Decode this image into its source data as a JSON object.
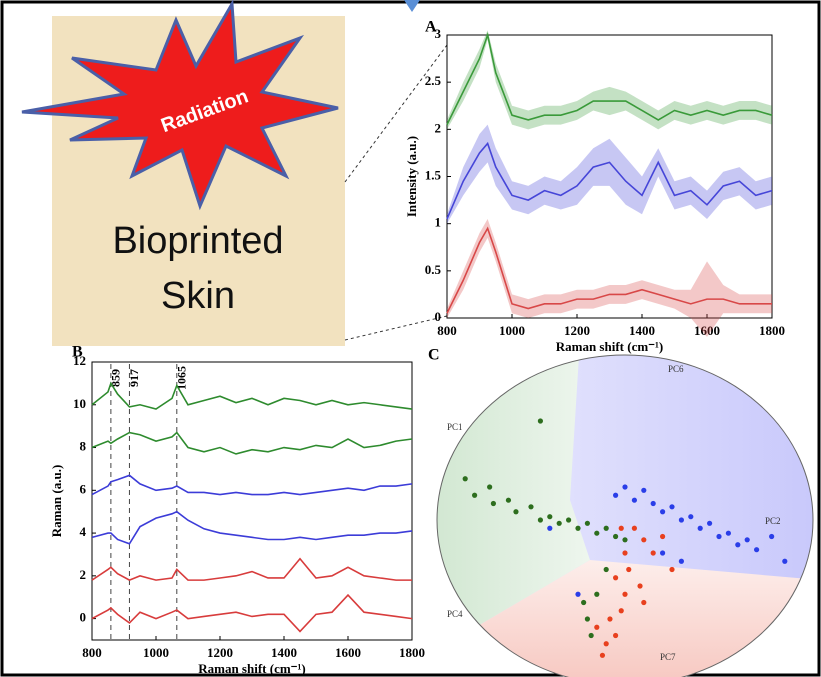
{
  "illustration": {
    "burst": "Radiation",
    "label_lines": [
      "Bioprinted",
      "Skin"
    ]
  },
  "chart_data": [
    {
      "type": "line",
      "panel": "A",
      "ylabel": "Intensity (a.u.)",
      "xlabel": "Raman shift (cm⁻¹)",
      "x": [
        800,
        850,
        900,
        925,
        950,
        1000,
        1050,
        1100,
        1150,
        1200,
        1250,
        1300,
        1350,
        1400,
        1450,
        1500,
        1550,
        1600,
        1650,
        1700,
        1750,
        1800
      ],
      "series": [
        {
          "color": "#3a9a3a",
          "values": [
            2.05,
            2.4,
            2.75,
            3.0,
            2.6,
            2.15,
            2.1,
            2.15,
            2.15,
            2.2,
            2.3,
            2.3,
            2.3,
            2.2,
            2.1,
            2.2,
            2.15,
            2.2,
            2.15,
            2.2,
            2.2,
            2.15
          ],
          "error": [
            0.05,
            0.1,
            0.1,
            0.05,
            0.1,
            0.1,
            0.1,
            0.1,
            0.1,
            0.1,
            0.1,
            0.15,
            0.1,
            0.1,
            0.1,
            0.1,
            0.1,
            0.1,
            0.1,
            0.1,
            0.1,
            0.1
          ]
        },
        {
          "color": "#4646d8",
          "values": [
            1.05,
            1.45,
            1.75,
            1.85,
            1.6,
            1.3,
            1.25,
            1.35,
            1.3,
            1.4,
            1.6,
            1.65,
            1.45,
            1.3,
            1.65,
            1.3,
            1.35,
            1.2,
            1.4,
            1.45,
            1.3,
            1.35
          ],
          "error": [
            0.05,
            0.15,
            0.2,
            0.2,
            0.2,
            0.15,
            0.15,
            0.15,
            0.15,
            0.2,
            0.2,
            0.25,
            0.25,
            0.2,
            0.15,
            0.15,
            0.15,
            0.15,
            0.15,
            0.15,
            0.15,
            0.15
          ]
        },
        {
          "color": "#d84848",
          "values": [
            0.05,
            0.4,
            0.8,
            0.95,
            0.7,
            0.15,
            0.1,
            0.15,
            0.15,
            0.2,
            0.2,
            0.25,
            0.25,
            0.3,
            0.25,
            0.2,
            0.15,
            0.2,
            0.2,
            0.15,
            0.15,
            0.15
          ],
          "error": [
            0.05,
            0.1,
            0.1,
            0.1,
            0.1,
            0.1,
            0.1,
            0.1,
            0.1,
            0.1,
            0.1,
            0.1,
            0.1,
            0.1,
            0.1,
            0.1,
            0.15,
            0.4,
            0.15,
            0.1,
            0.1,
            0.1
          ]
        }
      ],
      "xlim": [
        800,
        1800
      ],
      "xticks": [
        800,
        1000,
        1200,
        1400,
        1600,
        1800
      ],
      "ylim": [
        0,
        3
      ],
      "yticks": [
        0,
        0.5,
        1,
        1.5,
        2,
        2.5,
        3
      ]
    },
    {
      "type": "line",
      "panel": "B",
      "ylabel": "Raman (a.u.)",
      "xlabel": "Raman shift (cm⁻¹)",
      "x": [
        800,
        850,
        859,
        880,
        917,
        950,
        1000,
        1050,
        1065,
        1100,
        1150,
        1200,
        1250,
        1300,
        1350,
        1400,
        1450,
        1500,
        1550,
        1600,
        1650,
        1700,
        1750,
        1800
      ],
      "series": [
        {
          "color": "#2e8b2e",
          "values": [
            10.0,
            10.6,
            11.0,
            10.5,
            9.9,
            10.0,
            9.8,
            10.3,
            10.9,
            10.0,
            10.2,
            10.4,
            10.1,
            10.3,
            10.0,
            10.3,
            10.2,
            10.0,
            10.2,
            10.0,
            10.1,
            10.0,
            9.9,
            9.8
          ]
        },
        {
          "color": "#2e8b2e",
          "values": [
            8.0,
            8.3,
            8.2,
            8.4,
            8.7,
            8.6,
            8.3,
            8.5,
            8.7,
            8.0,
            7.8,
            8.0,
            7.7,
            7.9,
            7.8,
            8.0,
            7.9,
            8.1,
            8.0,
            8.4,
            8.0,
            8.1,
            8.3,
            8.4
          ]
        },
        {
          "color": "#3c3cd8",
          "values": [
            5.8,
            6.2,
            6.4,
            6.5,
            6.7,
            6.3,
            6.0,
            6.1,
            6.2,
            5.9,
            5.9,
            5.8,
            5.9,
            5.8,
            5.8,
            5.9,
            5.8,
            5.9,
            6.0,
            6.1,
            6.0,
            6.2,
            6.2,
            6.3
          ]
        },
        {
          "color": "#3c3cd8",
          "values": [
            3.8,
            4.0,
            4.0,
            3.7,
            3.5,
            4.3,
            4.7,
            4.9,
            5.0,
            4.6,
            4.2,
            4.0,
            3.9,
            3.8,
            3.7,
            3.7,
            3.8,
            3.7,
            3.8,
            3.9,
            3.9,
            4.0,
            4.0,
            4.1
          ]
        },
        {
          "color": "#d83c3c",
          "values": [
            1.8,
            2.3,
            2.4,
            2.1,
            1.8,
            2.0,
            1.8,
            1.9,
            2.3,
            1.8,
            1.8,
            1.9,
            2.0,
            2.2,
            1.9,
            1.9,
            2.8,
            1.9,
            2.0,
            2.4,
            2.0,
            1.9,
            1.8,
            1.8
          ]
        },
        {
          "color": "#d83c3c",
          "values": [
            0.0,
            0.4,
            0.5,
            0.2,
            -0.2,
            0.3,
            0.0,
            0.3,
            0.4,
            0.0,
            0.1,
            0.2,
            0.3,
            0.1,
            0.2,
            0.2,
            -0.6,
            0.2,
            0.3,
            1.1,
            0.3,
            0.2,
            0.1,
            0.0
          ]
        }
      ],
      "vlines": [
        859,
        917,
        1065
      ],
      "xlim": [
        800,
        1800
      ],
      "xticks": [
        800,
        1000,
        1200,
        1400,
        1600,
        1800
      ],
      "ylim": [
        -1,
        12
      ],
      "yticks": [
        0,
        2,
        4,
        6,
        8,
        10,
        12
      ]
    },
    {
      "type": "scatter",
      "panel": "C",
      "axis_labels": [
        "PC1",
        "PC2",
        "PC4",
        "PC6",
        "PC7"
      ],
      "series": [
        {
          "color": "#2d6e1e",
          "x": [
            -0.85,
            -0.8,
            -0.72,
            -0.7,
            -0.62,
            -0.58,
            -0.5,
            -0.45,
            -0.4,
            -0.35,
            -0.3,
            -0.25,
            -0.2,
            -0.15,
            -0.1,
            -0.05,
            0.0,
            -0.1,
            -0.15,
            -0.2,
            -0.18,
            -0.22,
            -0.45
          ],
          "y": [
            0.25,
            0.15,
            0.2,
            0.1,
            0.12,
            0.05,
            0.08,
            0.0,
            0.02,
            -0.02,
            0.0,
            -0.05,
            -0.02,
            -0.08,
            -0.05,
            -0.1,
            -0.12,
            -0.3,
            -0.45,
            -0.6,
            -0.7,
            -0.5,
            0.6
          ]
        },
        {
          "color": "#2a3ee8",
          "x": [
            -0.05,
            0.0,
            0.05,
            0.1,
            0.15,
            0.2,
            0.25,
            0.3,
            0.35,
            0.4,
            0.45,
            0.5,
            0.55,
            0.6,
            0.65,
            0.7,
            0.78,
            0.85,
            0.2,
            0.3,
            -0.25,
            -0.4
          ],
          "y": [
            0.15,
            0.2,
            0.12,
            0.18,
            0.1,
            0.05,
            0.08,
            0.0,
            0.02,
            -0.05,
            -0.02,
            -0.1,
            -0.08,
            -0.15,
            -0.12,
            -0.18,
            -0.1,
            -0.25,
            -0.2,
            -0.25,
            -0.45,
            -0.05
          ]
        },
        {
          "color": "#e8401e",
          "x": [
            0.05,
            0.1,
            0.0,
            0.02,
            -0.05,
            0.08,
            0.0,
            -0.02,
            -0.08,
            -0.05,
            -0.1,
            -0.12,
            -0.15,
            0.15,
            0.2,
            0.25,
            -0.02,
            0.1
          ],
          "y": [
            -0.05,
            -0.12,
            -0.2,
            -0.3,
            -0.35,
            -0.4,
            -0.45,
            -0.55,
            -0.6,
            -0.7,
            -0.75,
            -0.82,
            -0.65,
            -0.2,
            -0.1,
            -0.3,
            -0.05,
            -0.5
          ]
        }
      ]
    }
  ]
}
